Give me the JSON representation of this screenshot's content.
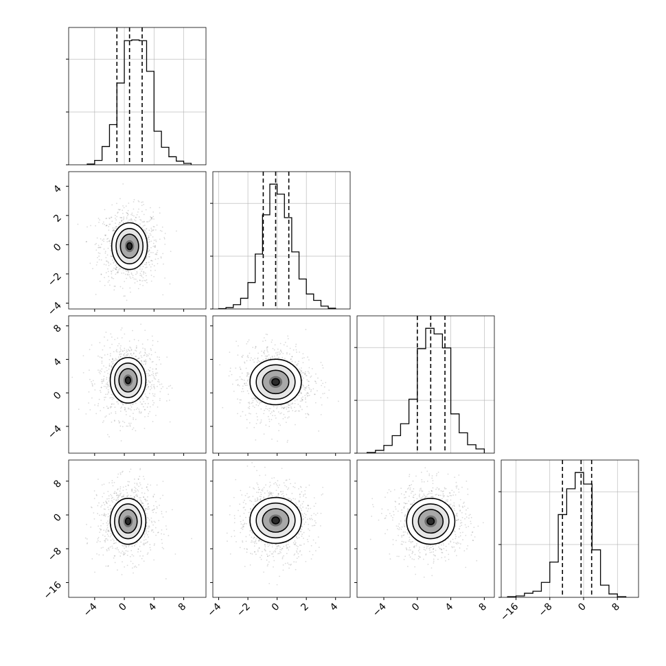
{
  "chart_data": {
    "type": "corner",
    "n_params": 4,
    "colors": {
      "line": "#000000",
      "grid": "#b0b0b0",
      "background": "#ffffff",
      "density_fill": "#000000"
    },
    "grid": true,
    "ranges": [
      [
        -7.5,
        11
      ],
      [
        -4.4,
        5
      ],
      [
        -7.2,
        9.2
      ],
      [
        -19.5,
        13
      ]
    ],
    "ticks": [
      {
        "values": [
          -4,
          0,
          4,
          8
        ],
        "labels": [
          "−4",
          "0",
          "4",
          "8"
        ]
      },
      {
        "values": [
          -4,
          -2,
          0,
          2,
          4
        ],
        "labels": [
          "−4",
          "−2",
          "0",
          "2",
          "4"
        ]
      },
      {
        "values": [
          -4,
          0,
          4,
          8
        ],
        "labels": [
          "−4",
          "0",
          "4",
          "8"
        ]
      },
      {
        "values": [
          -16,
          -8,
          0,
          8
        ],
        "labels": [
          "−16",
          "−8",
          "0",
          "8"
        ]
      }
    ],
    "histograms": [
      {
        "bin_edges": [
          -5,
          -4,
          -3,
          -2,
          -1,
          0,
          1,
          2,
          3,
          4,
          5,
          6,
          7,
          8,
          9
        ],
        "counts": [
          1,
          6,
          25,
          55,
          112,
          170,
          171,
          170,
          128,
          46,
          24,
          11,
          5,
          2
        ],
        "quantiles": [
          -1,
          0.7,
          2.4
        ]
      },
      {
        "bin_edges": [
          -4,
          -3.5,
          -3,
          -2.5,
          -2,
          -1.5,
          -1,
          -0.5,
          0,
          0.5,
          1,
          1.5,
          2,
          2.5,
          3,
          3.5,
          4
        ],
        "counts": [
          0.5,
          2,
          6,
          15,
          37,
          77,
          132,
          175,
          161,
          128,
          80,
          42,
          21,
          12,
          4,
          1
        ],
        "quantiles": [
          -0.95,
          -0.1,
          0.8
        ]
      },
      {
        "bin_edges": [
          -6,
          -5,
          -4,
          -3,
          -2,
          -1,
          0,
          1,
          2,
          3,
          4,
          5,
          6,
          7,
          8
        ],
        "counts": [
          1,
          4,
          11,
          25,
          42,
          77,
          149,
          178,
          170,
          150,
          56,
          29,
          12,
          6
        ],
        "quantiles": [
          0,
          1.6,
          3.3
        ]
      },
      {
        "bin_edges": [
          -18,
          -16,
          -14,
          -12,
          -10,
          -8,
          -6,
          -4,
          -2,
          0,
          2,
          4,
          6,
          8,
          10
        ],
        "counts": [
          1,
          2,
          6,
          9,
          22,
          52,
          122,
          160,
          184,
          167,
          70,
          18,
          5,
          1
        ],
        "quantiles": [
          -5,
          -0.6,
          1.9
        ]
      }
    ],
    "joint": [
      {
        "row": 1,
        "col": 0,
        "center": [
          0.7,
          -0.1
        ],
        "sd": [
          1.5,
          1.0
        ],
        "dot_sd": [
          2.0,
          1.3
        ],
        "contour_scale": [
          1,
          1.05,
          1.55,
          2.05
        ]
      },
      {
        "row": 2,
        "col": 0,
        "center": [
          0.5,
          1.5
        ],
        "sd": [
          1.5,
          1.7
        ],
        "dot_sd": [
          2.0,
          2.3
        ],
        "contour_scale": [
          1,
          1.05,
          1.55,
          2.05
        ]
      },
      {
        "row": 2,
        "col": 1,
        "center": [
          -0.1,
          1.3
        ],
        "sd": [
          1.1,
          1.7
        ],
        "dot_sd": [
          1.3,
          2.3
        ],
        "contour_scale": [
          1,
          1.05,
          1.55,
          2.05
        ]
      },
      {
        "row": 3,
        "col": 0,
        "center": [
          0.5,
          -1.5
        ],
        "sd": [
          1.5,
          3.4
        ],
        "dot_sd": [
          2.0,
          4.5
        ],
        "contour_scale": [
          1,
          1.05,
          1.55,
          2.05
        ]
      },
      {
        "row": 3,
        "col": 1,
        "center": [
          -0.1,
          -1.3
        ],
        "sd": [
          1.1,
          3.4
        ],
        "dot_sd": [
          1.3,
          4.5
        ],
        "contour_scale": [
          1,
          1.05,
          1.55,
          2.05
        ]
      },
      {
        "row": 3,
        "col": 2,
        "center": [
          1.6,
          -1.5
        ],
        "sd": [
          1.8,
          3.4
        ],
        "dot_sd": [
          2.3,
          4.5
        ],
        "contour_scale": [
          1,
          1.05,
          1.55,
          2.05
        ]
      }
    ]
  }
}
